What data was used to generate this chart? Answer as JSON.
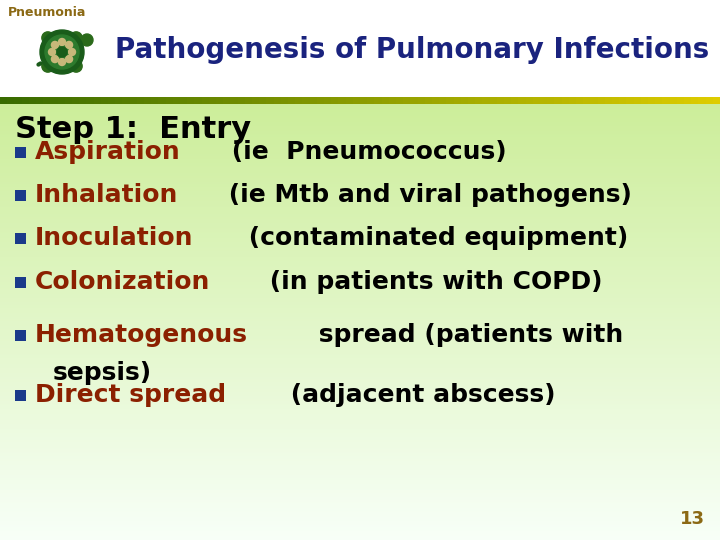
{
  "title": "Pathogenesis of Pulmonary Infections",
  "header_label": "Pneumonia",
  "header_title_color": "#1a237e",
  "header_label_color": "#8B6914",
  "step_title": "Step 1:  Entry",
  "step_title_color": "#000000",
  "bullet_color": "#1a3a8a",
  "highlight_color": "#8B2000",
  "body_text_color": "#000000",
  "separator_color_left": "#3a6a00",
  "separator_color_right": "#ddcc00",
  "page_number": "13",
  "page_number_color": "#8B6914",
  "bullets": [
    {
      "highlight": "Aspiration",
      "rest": " (ie  Pneumococcus)"
    },
    {
      "highlight": "Inhalation",
      "rest": " (ie Mtb and viral pathogens)"
    },
    {
      "highlight": "Inoculation",
      "rest": " (contaminated equipment)"
    },
    {
      "highlight": "Colonization",
      "rest": " (in patients with COPD)"
    },
    {
      "highlight": "Hematogenous",
      "rest": " spread (patients with",
      "continuation": "sepsis)"
    },
    {
      "highlight": "Direct spread",
      "rest": " (adjacent abscess)"
    }
  ]
}
